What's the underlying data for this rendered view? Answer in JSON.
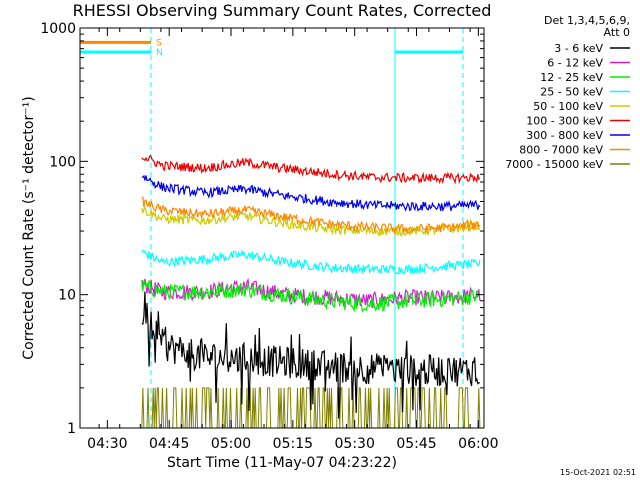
{
  "chart_data": {
    "type": "line",
    "title": "RHESSI Observing Summary Count Rates, Corrected",
    "xlabel": "Start Time (11-May-07 04:23:22)",
    "ylabel": "Corrected Count Rate (s⁻¹ detector⁻¹)",
    "yscale": "log",
    "ylim": [
      1,
      1000
    ],
    "xlim": [
      "04:23:22",
      "06:01"
    ],
    "x_ticks": [
      "04:30",
      "04:45",
      "05:00",
      "05:15",
      "05:30",
      "05:45",
      "06:00"
    ],
    "y_ticks": [
      "1",
      "10",
      "100",
      "1000"
    ],
    "legend_header": [
      "Det 1,3,4,5,6,9,",
      "Att 0"
    ],
    "x_minutes_after_start": [
      15,
      20,
      30,
      40,
      50,
      60,
      70,
      80,
      90,
      97
    ],
    "series": [
      {
        "name": "3 - 6 keV",
        "color": "#000000",
        "values": [
          7.5,
          4.2,
          3.4,
          3.3,
          3.1,
          2.9,
          2.8,
          2.7,
          2.7,
          2.7
        ]
      },
      {
        "name": "6 - 12 keV",
        "color": "#cc22cc",
        "values": [
          12,
          10.5,
          10.5,
          11.5,
          10,
          9.5,
          9,
          9.5,
          9.5,
          10
        ]
      },
      {
        "name": "12 - 25 keV",
        "color": "#00ee00",
        "values": [
          11.5,
          10.5,
          10.5,
          11,
          9.8,
          9,
          8.5,
          9,
          9.3,
          9.8
        ]
      },
      {
        "name": "25 - 50 keV",
        "color": "#00ffff",
        "values": [
          21,
          17.5,
          18.5,
          20,
          17.5,
          16,
          15.5,
          15.5,
          16.5,
          17
        ]
      },
      {
        "name": "50 - 100 keV",
        "color": "#cccc00",
        "values": [
          44,
          37,
          36,
          39,
          34,
          31,
          30,
          30,
          31,
          33
        ]
      },
      {
        "name": "100 - 300 keV",
        "color": "#ee0000",
        "values": [
          110,
          93,
          89,
          98,
          88,
          81,
          76,
          75,
          75,
          76
        ]
      },
      {
        "name": "300 - 800 keV",
        "color": "#0000ee",
        "values": [
          78,
          64,
          58,
          62,
          55,
          50,
          47,
          46,
          46,
          47
        ]
      },
      {
        "name": "800 - 7000 keV",
        "color": "#ff8800",
        "values": [
          50,
          43,
          40,
          43,
          38,
          34,
          32,
          31,
          32,
          34
        ]
      },
      {
        "name": "7000 - 15000 keV",
        "color": "#808000",
        "values": [
          1,
          1,
          1,
          1,
          1,
          1,
          1,
          1,
          1,
          1
        ]
      }
    ],
    "flags": [
      {
        "label": "S",
        "color": "#ff8800",
        "level": 780
      },
      {
        "label": "N",
        "color": "#00ffff",
        "level": 660
      }
    ],
    "legend_placement": "right",
    "grid": false
  },
  "timestamp": "15-Oct-2021 02:51"
}
